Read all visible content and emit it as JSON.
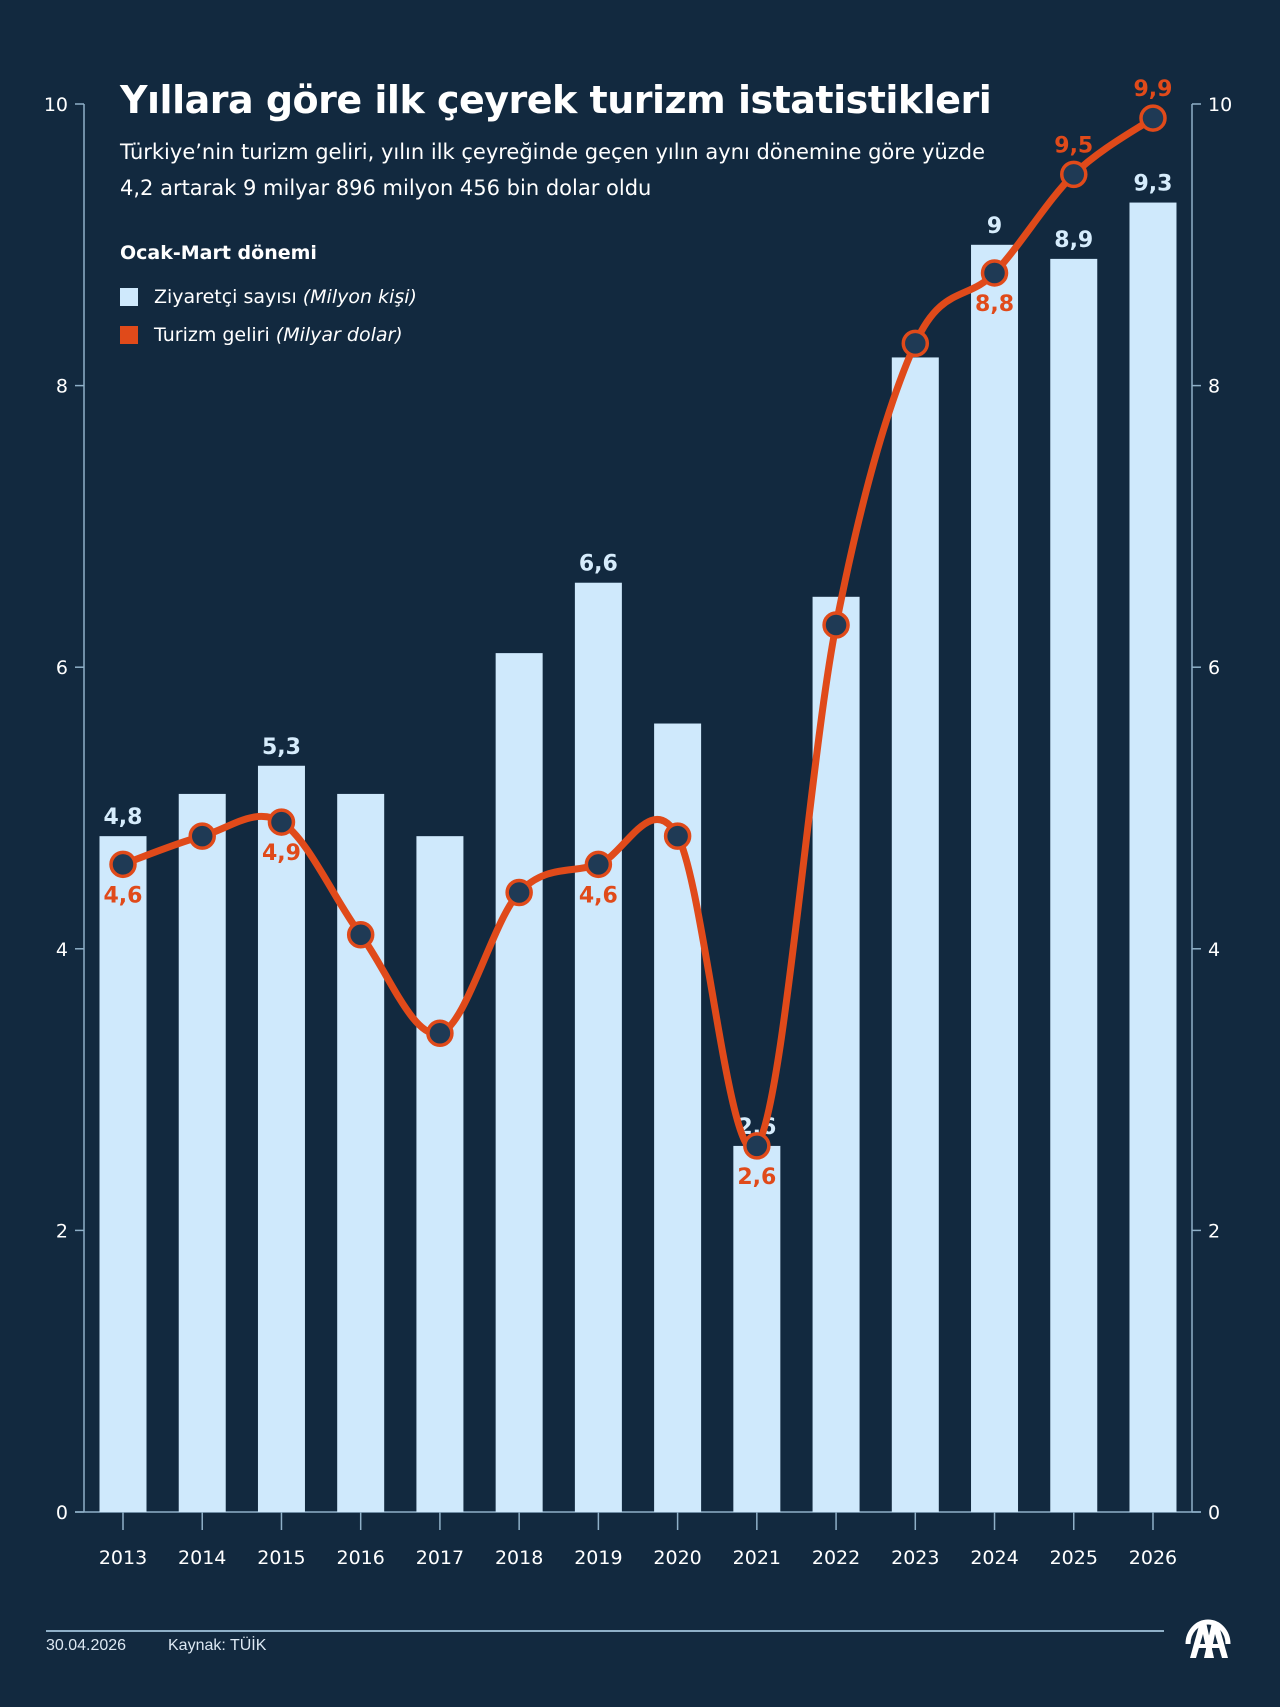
{
  "header": {
    "title": "Yıllara göre ilk çeyrek turizm istatistikleri",
    "subtitle": "Türkiye’nin turizm geliri, yılın ilk çeyreğinde geçen yılın aynı dönemine göre yüzde 4,2 artarak 9 milyar 896 milyon 456 bin dolar oldu"
  },
  "legend": {
    "title": "Ocak-Mart dönemi",
    "items": [
      {
        "label": "Ziyaretçi sayısı",
        "unit": "(Milyon kişi)",
        "color": "#cfe9fc"
      },
      {
        "label": "Turizm geliri",
        "unit": "(Milyar dolar)",
        "color": "#e04a1a"
      }
    ]
  },
  "footer": {
    "date": "30.04.2026",
    "source": "Kaynak: TÜİK",
    "logo": "aa-logo-icon"
  },
  "colors": {
    "background": "#12293f",
    "bar": "#cfe9fc",
    "line": "#e04a1a",
    "marker_fill": "#1f3a55",
    "axis": "#8fb0c8",
    "bar_label": "#d6ecfc",
    "line_label": "#e04a1a"
  },
  "chart_data": {
    "type": "bar",
    "title": "Yıllara göre ilk çeyrek turizm istatistikleri",
    "xlabel": "",
    "ylabel": "",
    "ylim": [
      0,
      10
    ],
    "y2lim": [
      0,
      10
    ],
    "yticks": [
      0,
      2,
      4,
      6,
      8,
      10
    ],
    "grid": false,
    "legend_position": "top-left",
    "categories": [
      "2013",
      "2014",
      "2015",
      "2016",
      "2017",
      "2018",
      "2019",
      "2020",
      "2021",
      "2022",
      "2023",
      "2024",
      "2025",
      "2026"
    ],
    "series": [
      {
        "name": "Ziyaretçi sayısı (Milyon kişi)",
        "type": "bar",
        "values": [
          4.8,
          5.1,
          5.3,
          5.1,
          4.8,
          6.1,
          6.6,
          5.6,
          2.6,
          6.5,
          8.2,
          9.0,
          8.9,
          9.3
        ],
        "labels": [
          "4,8",
          "",
          "5,3",
          "",
          "",
          "",
          "6,6",
          "",
          "2,6",
          "",
          "",
          "9",
          "8,9",
          "9,3"
        ]
      },
      {
        "name": "Turizm geliri (Milyar dolar)",
        "type": "line",
        "smooth": true,
        "values": [
          4.6,
          4.8,
          4.9,
          4.1,
          3.4,
          4.4,
          4.6,
          4.8,
          2.6,
          6.3,
          8.3,
          8.8,
          9.5,
          9.9
        ],
        "labels": [
          "4,6",
          "",
          "4,9",
          "",
          "",
          "",
          "4,6",
          "",
          "2,6",
          "",
          "",
          "8,8",
          "9,5",
          "9,9"
        ],
        "label_position": [
          "below",
          "",
          "below",
          "",
          "",
          "",
          "below",
          "",
          "below",
          "",
          "",
          "below",
          "above",
          "above"
        ]
      }
    ]
  }
}
